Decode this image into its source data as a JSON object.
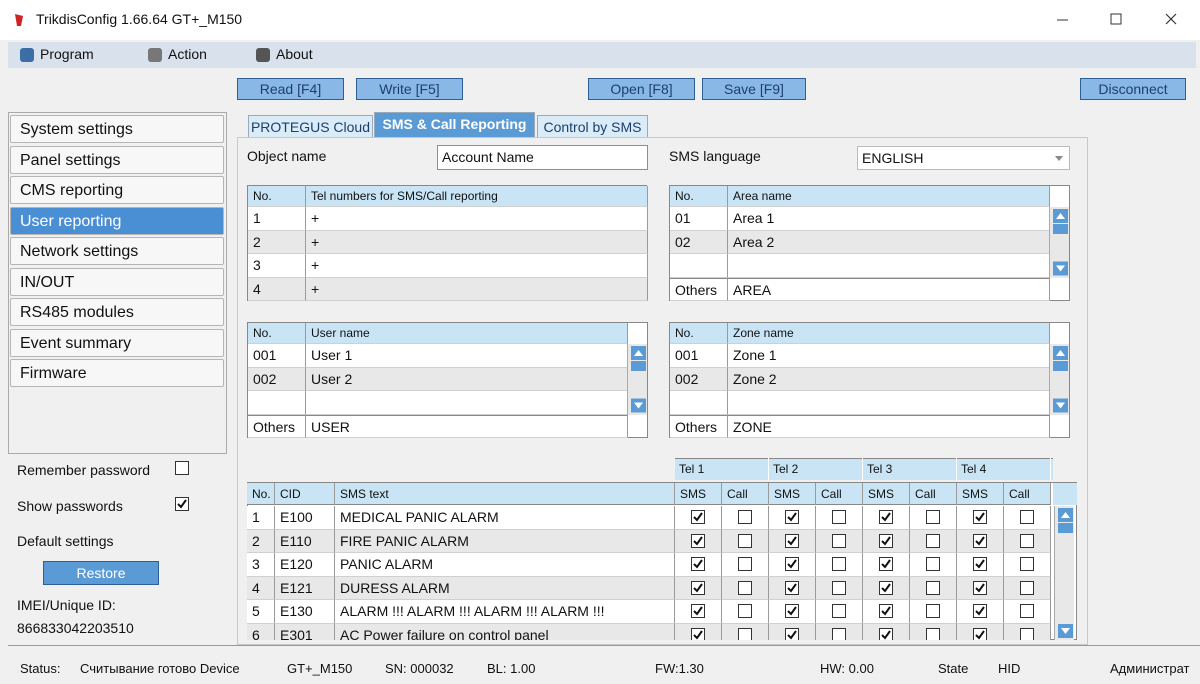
{
  "window": {
    "title": "TrikdisConfig 1.66.64   GT+_M150"
  },
  "menu": [
    "Program",
    "Action",
    "About"
  ],
  "toolbar": [
    "Read [F4]",
    "Write [F5]",
    "Open [F8]",
    "Save [F9]",
    "Disconnect"
  ],
  "sidebar": {
    "items": [
      "System settings",
      "Panel settings",
      "CMS reporting",
      "User reporting",
      "Network settings",
      "IN/OUT",
      "RS485 modules",
      "Event summary",
      "Firmware"
    ],
    "active_item": 3,
    "remember_password": "Remember password",
    "remember_checked": false,
    "show_passwords": "Show passwords",
    "show_checked": true,
    "default_settings": "Default settings",
    "restore": "Restore",
    "imei_label": "IMEI/Unique ID:",
    "imei": "866833042203510"
  },
  "tabs": [
    "PROTEGUS Cloud",
    "SMS & Call Reporting",
    "Control by SMS"
  ],
  "active_tab": 1,
  "form": {
    "object_name_label": "Object name",
    "object_name": "Account Name",
    "sms_language_label": "SMS language",
    "sms_language": "ENGLISH"
  },
  "tel_table": {
    "headers": [
      "No.",
      "Tel numbers for SMS/Call reporting"
    ],
    "rows": [
      [
        "1",
        "+"
      ],
      [
        "2",
        "+"
      ],
      [
        "3",
        "+"
      ],
      [
        "4",
        "+"
      ]
    ]
  },
  "area_table": {
    "headers": [
      "No.",
      "Area name"
    ],
    "rows": [
      [
        "01",
        "Area 1"
      ],
      [
        "02",
        "Area 2"
      ]
    ],
    "others": [
      "Others",
      "AREA"
    ]
  },
  "user_table": {
    "headers": [
      "No.",
      "User name"
    ],
    "rows": [
      [
        "001",
        "User 1"
      ],
      [
        "002",
        "User 2"
      ]
    ],
    "others": [
      "Others",
      "USER"
    ]
  },
  "zone_table": {
    "headers": [
      "No.",
      "Zone name"
    ],
    "rows": [
      [
        "001",
        "Zone 1"
      ],
      [
        "002",
        "Zone 2"
      ]
    ],
    "others": [
      "Others",
      "ZONE"
    ]
  },
  "sms_table": {
    "group_headers": [
      "Tel 1",
      "Tel 2",
      "Tel 3",
      "Tel 4"
    ],
    "headers": [
      "No.",
      "CID",
      "SMS text",
      "SMS",
      "Call",
      "SMS",
      "Call",
      "SMS",
      "Call",
      "SMS",
      "Call"
    ],
    "rows": [
      [
        "1",
        "E100",
        "MEDICAL PANIC ALARM"
      ],
      [
        "2",
        "E110",
        "FIRE PANIC ALARM"
      ],
      [
        "3",
        "E120",
        "PANIC ALARM"
      ],
      [
        "4",
        "E121",
        "DURESS ALARM"
      ],
      [
        "5",
        "E130",
        "ALARM !!! ALARM !!! ALARM !!! ALARM !!!"
      ],
      [
        "6",
        "E301",
        "AC Power failure on control panel"
      ]
    ],
    "checks": [
      [
        true,
        false,
        true,
        false,
        true,
        false,
        true,
        false
      ],
      [
        true,
        false,
        true,
        false,
        true,
        false,
        true,
        false
      ],
      [
        true,
        false,
        true,
        false,
        true,
        false,
        true,
        false
      ],
      [
        true,
        false,
        true,
        false,
        true,
        false,
        true,
        false
      ],
      [
        true,
        false,
        true,
        false,
        true,
        false,
        true,
        false
      ],
      [
        true,
        false,
        true,
        false,
        true,
        false,
        true,
        false
      ]
    ]
  },
  "status": [
    "Status:",
    "Считывание готово Device",
    "GT+_M150",
    "SN: 000032",
    "BL: 1.00",
    "FW:1.30",
    "HW:  0.00",
    "State",
    "HID",
    "Администрат"
  ]
}
